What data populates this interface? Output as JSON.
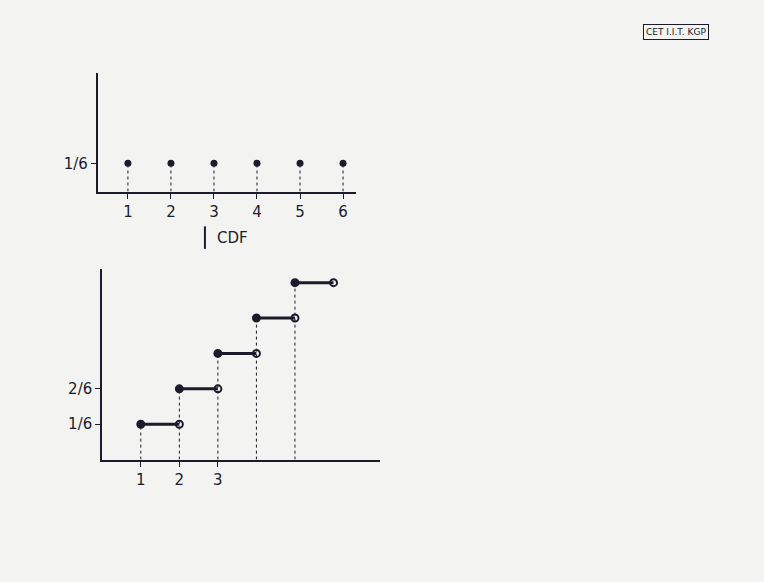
{
  "chart_data": [
    {
      "type": "scatter",
      "marker": "circle",
      "x": [
        1,
        2,
        3,
        4,
        5,
        6
      ],
      "values": [
        0.1667,
        0.1667,
        0.1667,
        0.1667,
        0.1667,
        0.1667
      ],
      "xlim": [
        0.3,
        6.3
      ],
      "xticks": [
        1,
        2,
        3,
        4,
        5,
        6
      ],
      "ylim": [
        0,
        0.7
      ],
      "yticks": [
        {
          "value": 0.1667,
          "label": "1/6"
        }
      ],
      "grid": false,
      "color": "#1b1b2b"
    },
    {
      "type": "step",
      "marker": "circle",
      "x": [
        1,
        2,
        3,
        4,
        5
      ],
      "x_end": [
        2,
        3,
        4,
        5,
        6
      ],
      "values": [
        0.1667,
        0.3333,
        0.5,
        0.6667,
        0.8333
      ],
      "xlim": [
        0,
        7.2
      ],
      "xticks": [
        1,
        2,
        3
      ],
      "ylim": [
        0,
        0.9
      ],
      "yticks": [
        {
          "value": 0.1667,
          "label": "1/6"
        },
        {
          "value": 0.3333,
          "label": "2/6"
        }
      ],
      "grid": false,
      "color": "#1b1b2b"
    }
  ],
  "labels": {
    "arrow_text": "CDF",
    "stamp": "CET I.I.T. KGP"
  }
}
